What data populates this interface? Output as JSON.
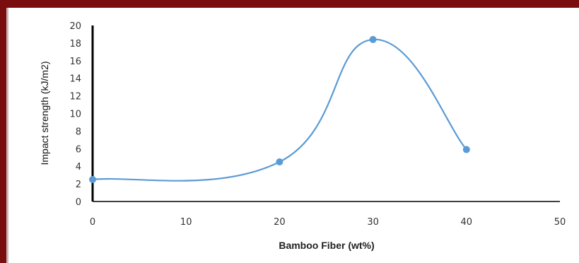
{
  "colors": {
    "frame": "#7a0d0d",
    "series": "#5b9bd5",
    "axis": "#000000"
  },
  "chart_data": {
    "type": "line",
    "title": "",
    "xlabel": "Bamboo Fiber (wt%)",
    "ylabel": "Impact strength (kJ/m2)",
    "xlim": [
      0,
      50
    ],
    "ylim": [
      0,
      20
    ],
    "x_ticks": [
      0,
      10,
      20,
      30,
      40,
      50
    ],
    "y_ticks": [
      0,
      2,
      4,
      6,
      8,
      10,
      12,
      14,
      16,
      18,
      20
    ],
    "grid": false,
    "legend": "none",
    "smooth": true,
    "series": [
      {
        "x": [
          0,
          20,
          30,
          40
        ],
        "y": [
          2.5,
          4.5,
          18.4,
          5.9
        ]
      }
    ]
  }
}
